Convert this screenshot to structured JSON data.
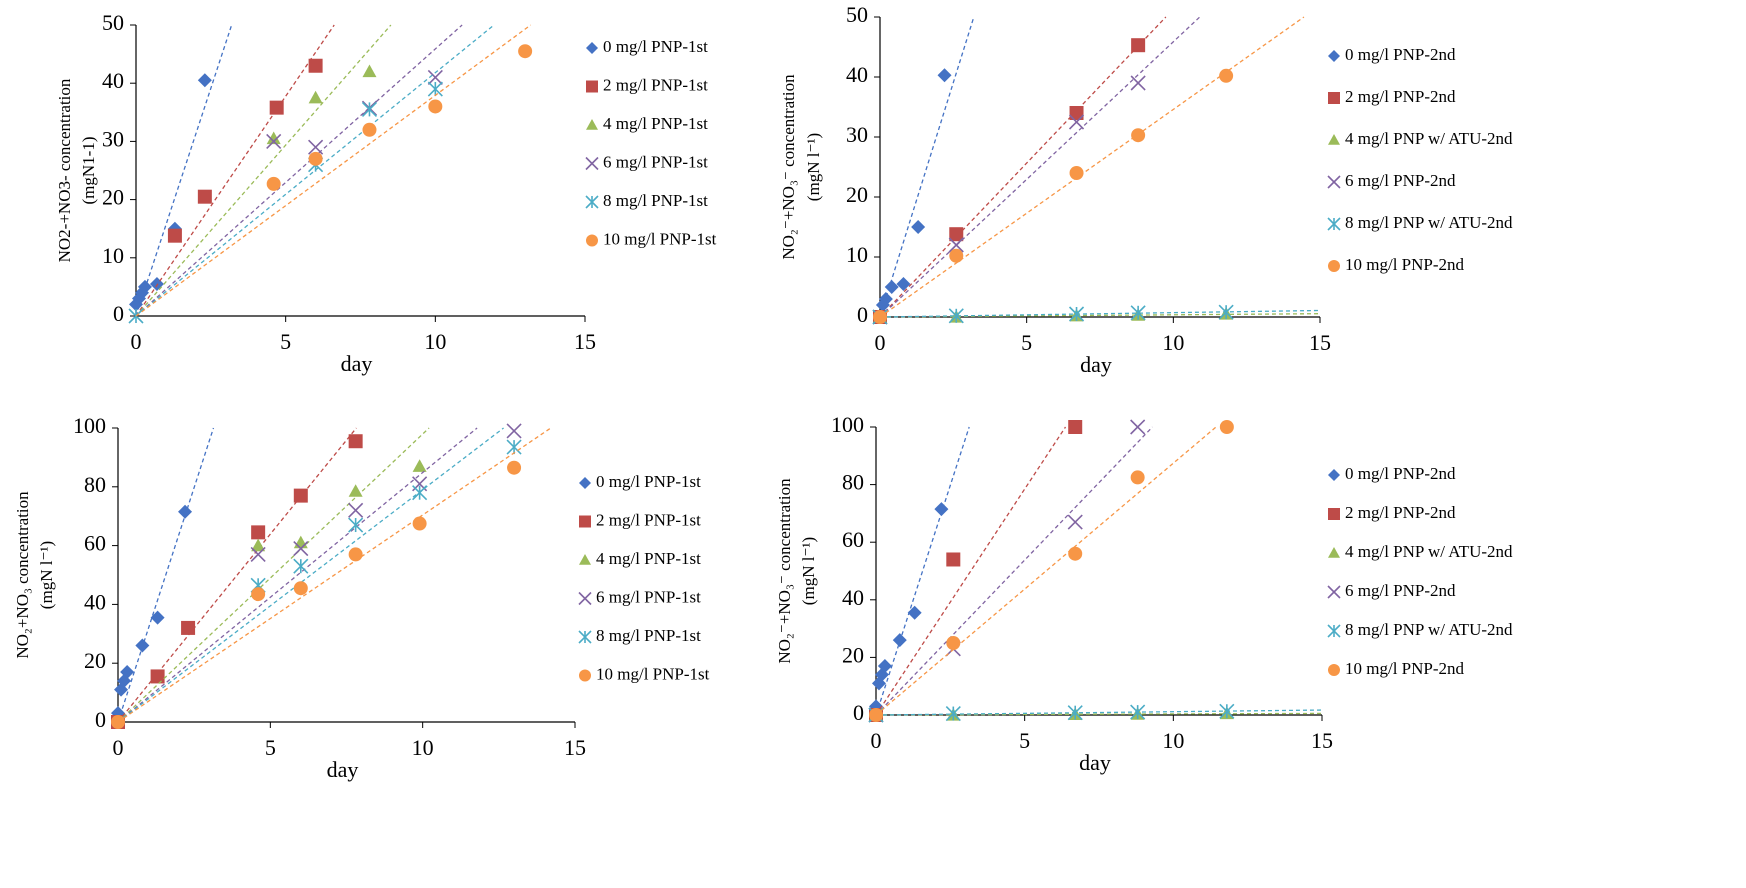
{
  "chart_data": [
    {
      "type": "scatter",
      "xlabel": "day",
      "ylabel": [
        "NO2-+NO3-  concentration",
        "(mgN1-1)"
      ],
      "xlim": [
        0,
        15
      ],
      "xticks": [
        0,
        5,
        10,
        15
      ],
      "ylim": [
        0,
        50
      ],
      "yticks": [
        0,
        10,
        20,
        30,
        40,
        50
      ],
      "trendline": true,
      "series": [
        {
          "name": "0 mg/l PNP-1st",
          "color": "#4472c4",
          "marker": "diamond",
          "x": [
            0,
            0.1,
            0.2,
            0.3,
            0.7,
            1.3,
            2.3
          ],
          "values": [
            2,
            3,
            4,
            5,
            5.5,
            15,
            40.5
          ]
        },
        {
          "name": "2 mg/l PNP-1st",
          "color": "#be4b48",
          "marker": "square",
          "x": [
            1.3,
            2.3,
            4.7,
            6
          ],
          "values": [
            13.8,
            20.5,
            35.8,
            43
          ]
        },
        {
          "name": "4 mg/l PNP-1st",
          "color": "#9bbb59",
          "marker": "triangle",
          "x": [
            4.6,
            6,
            7.8
          ],
          "values": [
            30.5,
            37.5,
            42
          ]
        },
        {
          "name": "6 mg/l PNP-1st",
          "color": "#8064a2",
          "marker": "x",
          "x": [
            4.6,
            6,
            7.8,
            10
          ],
          "values": [
            30,
            29,
            35.7,
            41
          ]
        },
        {
          "name": "8 mg/l PNP-1st",
          "color": "#4bacc6",
          "marker": "star",
          "x": [
            0,
            6,
            7.8,
            10
          ],
          "values": [
            0,
            26,
            35.5,
            39
          ]
        },
        {
          "name": "10 mg/l PNP-1st",
          "color": "#f79646",
          "marker": "circle",
          "x": [
            4.6,
            6,
            7.8,
            10,
            13
          ],
          "values": [
            22.7,
            27,
            32,
            36,
            45.5
          ]
        }
      ]
    },
    {
      "type": "scatter",
      "xlabel": "day",
      "ylabel": [
        "NO₂⁻+NO₃⁻ concentration",
        "(mgN l⁻¹)"
      ],
      "xlim": [
        0,
        15
      ],
      "xticks": [
        0,
        5,
        10,
        15
      ],
      "ylim": [
        0,
        50
      ],
      "yticks": [
        0,
        10,
        20,
        30,
        40,
        50
      ],
      "trendline": true,
      "series": [
        {
          "name": "0 mg/l PNP-2nd",
          "color": "#4472c4",
          "marker": "diamond",
          "x": [
            0.1,
            0.2,
            0.4,
            0.8,
            1.3,
            2.2
          ],
          "values": [
            2,
            3,
            5,
            5.5,
            15,
            40.3
          ]
        },
        {
          "name": "2 mg/l PNP-2nd",
          "color": "#be4b48",
          "marker": "square",
          "x": [
            0,
            2.6,
            6.7,
            8.8
          ],
          "values": [
            0,
            13.8,
            34,
            45.3
          ]
        },
        {
          "name": "4 mg/l PNP w/ ATU-2nd",
          "color": "#9bbb59",
          "marker": "triangle",
          "x": [
            0,
            2.6,
            6.7,
            8.8,
            11.8
          ],
          "values": [
            0,
            0,
            0.2,
            0.3,
            0.5
          ]
        },
        {
          "name": "6 mg/l PNP-2nd",
          "color": "#8064a2",
          "marker": "x",
          "x": [
            0,
            2.6,
            6.7,
            8.8
          ],
          "values": [
            0,
            12,
            32.5,
            39
          ]
        },
        {
          "name": "8 mg/l PNP w/ ATU-2nd",
          "color": "#4bacc6",
          "marker": "star",
          "x": [
            0,
            2.6,
            6.7,
            8.8,
            11.8
          ],
          "values": [
            0,
            0.2,
            0.5,
            0.7,
            0.8
          ]
        },
        {
          "name": "10 mg/l PNP-2nd",
          "color": "#f79646",
          "marker": "circle",
          "x": [
            0,
            2.6,
            6.7,
            8.8,
            11.8
          ],
          "values": [
            0,
            10.2,
            24,
            30.3,
            40.2
          ]
        }
      ]
    },
    {
      "type": "scatter",
      "xlabel": "day",
      "ylabel": [
        "NO₂+NO₃ concentration",
        "(mgN l⁻¹)"
      ],
      "xlim": [
        0,
        15
      ],
      "xticks": [
        0,
        5,
        10,
        15
      ],
      "ylim": [
        0,
        100
      ],
      "yticks": [
        0,
        20,
        40,
        60,
        80,
        100
      ],
      "trendline": true,
      "series": [
        {
          "name": "0 mg/l PNP-1st",
          "color": "#4472c4",
          "marker": "diamond",
          "x": [
            0,
            0.1,
            0.2,
            0.3,
            0.8,
            1.3,
            2.2
          ],
          "values": [
            3,
            11,
            14,
            17,
            26,
            35.5,
            71.5
          ]
        },
        {
          "name": "2 mg/l PNP-1st",
          "color": "#be4b48",
          "marker": "square",
          "x": [
            0,
            1.3,
            2.3,
            4.6,
            6,
            7.8
          ],
          "values": [
            0,
            15.5,
            32,
            64.5,
            77,
            95.5
          ]
        },
        {
          "name": "4 mg/l PNP-1st",
          "color": "#9bbb59",
          "marker": "triangle",
          "x": [
            4.6,
            6,
            7.8,
            9.9
          ],
          "values": [
            60,
            61,
            78.5,
            87
          ]
        },
        {
          "name": "6 mg/l PNP-1st",
          "color": "#8064a2",
          "marker": "x",
          "x": [
            4.6,
            6,
            7.8,
            9.9,
            13
          ],
          "values": [
            57,
            59,
            72,
            81,
            99
          ]
        },
        {
          "name": "8 mg/l PNP-1st",
          "color": "#4bacc6",
          "marker": "star",
          "x": [
            4.6,
            6,
            7.8,
            9.9,
            13
          ],
          "values": [
            46.5,
            53,
            67,
            78,
            93.5
          ]
        },
        {
          "name": "10 mg/l PNP-1st",
          "color": "#f79646",
          "marker": "circle",
          "x": [
            0,
            4.6,
            6,
            7.8,
            9.9,
            13
          ],
          "values": [
            0,
            43.5,
            45.5,
            57,
            67.5,
            86.5
          ]
        }
      ]
    },
    {
      "type": "scatter",
      "xlabel": "day",
      "ylabel": [
        "NO₂⁻+NO₃⁻ concentration",
        "(mgN l⁻¹)"
      ],
      "xlim": [
        0,
        15
      ],
      "xticks": [
        0,
        5,
        10,
        15
      ],
      "ylim": [
        0,
        100
      ],
      "yticks": [
        0,
        20,
        40,
        60,
        80,
        100
      ],
      "trendline": true,
      "series": [
        {
          "name": "0 mg/l PNP-2nd",
          "color": "#4472c4",
          "marker": "diamond",
          "x": [
            0,
            0.1,
            0.2,
            0.3,
            0.8,
            1.3,
            2.2
          ],
          "values": [
            3,
            11,
            14,
            17,
            26,
            35.5,
            71.5
          ]
        },
        {
          "name": "2 mg/l PNP-2nd",
          "color": "#be4b48",
          "marker": "square",
          "x": [
            0,
            2.6,
            6.7
          ],
          "values": [
            0,
            54,
            100
          ]
        },
        {
          "name": "4 mg/l PNP w/ ATU-2nd",
          "color": "#9bbb59",
          "marker": "triangle",
          "x": [
            0,
            2.6,
            6.7,
            8.8,
            11.8
          ],
          "values": [
            0,
            0,
            0.2,
            0.3,
            0.5
          ]
        },
        {
          "name": "6 mg/l PNP-2nd",
          "color": "#8064a2",
          "marker": "x",
          "x": [
            0,
            2.6,
            6.7,
            8.8
          ],
          "values": [
            0,
            23,
            67,
            100
          ]
        },
        {
          "name": "8 mg/l PNP w/ ATU-2nd",
          "color": "#4bacc6",
          "marker": "star",
          "x": [
            0,
            2.6,
            6.7,
            8.8,
            11.8
          ],
          "values": [
            0,
            0.5,
            0.8,
            1,
            1.3
          ]
        },
        {
          "name": "10 mg/l PNP-2nd",
          "color": "#f79646",
          "marker": "circle",
          "x": [
            0,
            2.6,
            6.7,
            8.8,
            11.8
          ],
          "values": [
            0,
            25,
            56,
            82.5,
            100
          ]
        }
      ]
    }
  ]
}
